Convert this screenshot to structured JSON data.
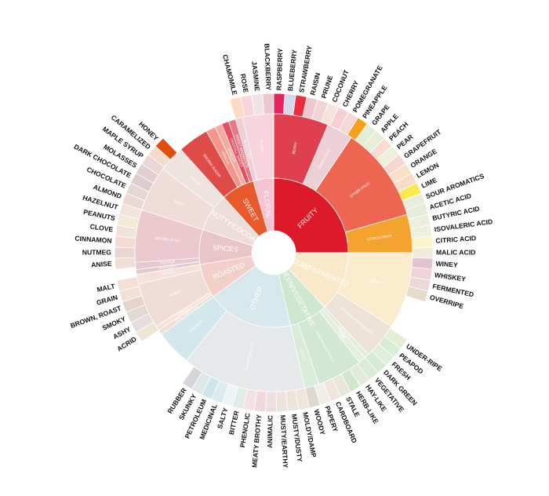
{
  "wheel": {
    "inner": [
      {
        "name": "FRUITY",
        "color": "#dd1a2a",
        "span": [
          0,
          90
        ]
      },
      {
        "name": "SOUR/FERMENTED",
        "color": "#fae9c9",
        "span": [
          90,
          137
        ]
      },
      {
        "name": "GREEN/VEGETATIVE",
        "color": "#cfe6cf",
        "span": [
          137,
          167
        ]
      },
      {
        "name": "OTHER",
        "color": "#d6e8ec",
        "span": [
          167,
          234
        ]
      },
      {
        "name": "ROASTED",
        "color": "#f3cfca",
        "span": [
          234,
          261
        ]
      },
      {
        "name": "SPICES",
        "color": "#e9c4c9",
        "span": [
          261,
          288
        ]
      },
      {
        "name": "NUTTY/COCOA",
        "color": "#eddddb",
        "span": [
          288,
          318
        ]
      },
      {
        "name": "SWEET",
        "color": "#e85a2c",
        "span": [
          318,
          344
        ]
      },
      {
        "name": "FLORAL",
        "color": "#f5c3d3",
        "span": [
          344,
          360
        ]
      }
    ],
    "middle": [
      {
        "name": "BERRY",
        "color": "#df4050",
        "span": [
          0,
          23
        ]
      },
      {
        "name": "DRIED FRUIT",
        "color": "#ecd0d5",
        "span": [
          23,
          34
        ]
      },
      {
        "name": "OTHER FRUIT",
        "color": "#ee6652",
        "span": [
          34,
          74
        ]
      },
      {
        "name": "CITRUS FRUIT",
        "color": "#f4a32f",
        "span": [
          74,
          90
        ]
      },
      {
        "name": "SOUR",
        "color": "#fbecce",
        "span": [
          90,
          122
        ]
      },
      {
        "name": "ALCOHOL/FERMENTED",
        "color": "#ece3d6",
        "span": [
          122,
          137
        ]
      },
      {
        "name": "OLIVE OIL",
        "color": "#e0ecde",
        "span": [
          137,
          139
        ]
      },
      {
        "name": "RAW",
        "color": "#e5efe1",
        "span": [
          139,
          142
        ]
      },
      {
        "name": "GREEN/VEGETATIVE",
        "color": "#d2e8d4",
        "span": [
          142,
          161
        ]
      },
      {
        "name": "BEANY",
        "color": "#d8ecd8",
        "span": [
          161,
          167
        ]
      },
      {
        "name": "PAPERY/MUSTY",
        "color": "#e6e9ea",
        "span": [
          167,
          219
        ]
      },
      {
        "name": "CHEMICAL",
        "color": "#d3e8ec",
        "span": [
          219,
          234
        ]
      },
      {
        "name": "PIPE TOBACCO",
        "color": "#f2ddd3",
        "span": [
          234,
          236
        ]
      },
      {
        "name": "TOBACCO",
        "color": "#f5e2d8",
        "span": [
          236,
          238
        ]
      },
      {
        "name": "BURNT",
        "color": "#f0ddd8",
        "span": [
          238,
          257
        ]
      },
      {
        "name": "CEREAL",
        "color": "#f5e1d9",
        "span": [
          257,
          261
        ]
      },
      {
        "name": "PUNGENT",
        "color": "#e2c9cd",
        "span": [
          261,
          263
        ]
      },
      {
        "name": "PEPPER",
        "color": "#e6cacf",
        "span": [
          263,
          266
        ]
      },
      {
        "name": "BROWN SPICE",
        "color": "#ebc9cf",
        "span": [
          266,
          288
        ]
      },
      {
        "name": "NUTTY",
        "color": "#f0dcd9",
        "span": [
          288,
          307
        ]
      },
      {
        "name": "COCOA",
        "color": "#efe3e0",
        "span": [
          307,
          318
        ]
      },
      {
        "name": "BROWN SUGAR",
        "color": "#df4c48",
        "span": [
          318,
          331
        ]
      },
      {
        "name": "VANILLA",
        "color": "#f5958a",
        "span": [
          331,
          335
        ]
      },
      {
        "name": "VANILLIN",
        "color": "#f7a89b",
        "span": [
          335,
          338
        ]
      },
      {
        "name": "OVERALL SWEET",
        "color": "#e94b61",
        "span": [
          338,
          341
        ]
      },
      {
        "name": "SWEET AROMATICS",
        "color": "#e77a82",
        "span": [
          341,
          344
        ]
      },
      {
        "name": "BLACK TEA",
        "color": "#eccfd7",
        "span": [
          344,
          347
        ]
      },
      {
        "name": "FLORAL",
        "color": "#f7d4de",
        "span": [
          347,
          360
        ]
      }
    ],
    "outer": [
      {
        "name": "CHAMOMILE",
        "color": "#fbdcc3",
        "span": [
          344,
          348
        ]
      },
      {
        "name": "ROSE",
        "color": "#f8d5dd",
        "span": [
          348,
          352
        ]
      },
      {
        "name": "JASMINE",
        "color": "#efe3e6",
        "span": [
          352,
          356
        ]
      },
      {
        "name": "BLACKBERRY",
        "color": "#e9c9cf",
        "span": [
          356,
          360
        ]
      },
      {
        "name": "RASPBERRY",
        "color": "#e3245d",
        "span": [
          0,
          4
        ]
      },
      {
        "name": "BLUEBERRY",
        "color": "#d6d6e9",
        "span": [
          4,
          8
        ]
      },
      {
        "name": "STRAWBERRY",
        "color": "#ee2c3b",
        "span": [
          8,
          12
        ]
      },
      {
        "name": "RAISIN",
        "color": "#edc9cf",
        "span": [
          12,
          16
        ]
      },
      {
        "name": "PRUNE",
        "color": "#f0d4d6",
        "span": [
          16,
          20
        ]
      },
      {
        "name": "COCONUT",
        "color": "#f6e3dc",
        "span": [
          20,
          24
        ]
      },
      {
        "name": "CHERRY",
        "color": "#f5cfd3",
        "span": [
          24,
          28
        ]
      },
      {
        "name": "POMEGRANATE",
        "color": "#f6d9d6",
        "span": [
          28,
          32
        ]
      },
      {
        "name": "PINEAPPLE",
        "color": "#f7a01c",
        "span": [
          32,
          36
        ]
      },
      {
        "name": "GRAPE",
        "color": "#e3efd4",
        "span": [
          36,
          40
        ]
      },
      {
        "name": "APPLE",
        "color": "#e7efd8",
        "span": [
          40,
          44
        ]
      },
      {
        "name": "PEACH",
        "color": "#f7dccf",
        "span": [
          44,
          48
        ]
      },
      {
        "name": "PEAR",
        "color": "#eff0dc",
        "span": [
          48,
          52
        ]
      },
      {
        "name": "GRAPEFRUIT",
        "color": "#f8d6cf",
        "span": [
          52,
          56
        ]
      },
      {
        "name": "ORANGE",
        "color": "#f9e0c8",
        "span": [
          56,
          60
        ]
      },
      {
        "name": "LEMON",
        "color": "#f9dcc7",
        "span": [
          60,
          64
        ]
      },
      {
        "name": "LIME",
        "color": "#fae84c",
        "span": [
          64,
          68
        ]
      },
      {
        "name": "SOUR AROMATICS",
        "color": "#e8eedb",
        "span": [
          68,
          72
        ]
      },
      {
        "name": "ACETIC ACID",
        "color": "#e4ecdc",
        "span": [
          72,
          76
        ]
      },
      {
        "name": "BUTYRIC ACID",
        "color": "#edeede",
        "span": [
          76,
          80
        ]
      },
      {
        "name": "ISOVALERIC ACID",
        "color": "#eef0df",
        "span": [
          80,
          84
        ]
      },
      {
        "name": "CITRIC ACID",
        "color": "#fbf3c9",
        "span": [
          84,
          88
        ]
      },
      {
        "name": "MALIC ACID",
        "color": "#f1ecd9",
        "span": [
          88,
          92
        ]
      },
      {
        "name": "WINEY",
        "color": "#e3c2d1",
        "span": [
          92,
          96
        ]
      },
      {
        "name": "WHISKEY",
        "color": "#f0d2da",
        "span": [
          96,
          100
        ]
      },
      {
        "name": "FERMENTED",
        "color": "#ecd8d7",
        "span": [
          100,
          104
        ]
      },
      {
        "name": "OVERRIPE",
        "color": "#e5dccf",
        "span": [
          104,
          108
        ]
      },
      {
        "name": "UNDER-RIPE",
        "color": "#e3efd2",
        "span": [
          123,
          127
        ]
      },
      {
        "name": "PEAPOD",
        "color": "#d8ecd6",
        "span": [
          127,
          131
        ]
      },
      {
        "name": "FRESH",
        "color": "#e2eedc",
        "span": [
          131,
          135
        ]
      },
      {
        "name": "DARK GREEN",
        "color": "#d6e9d6",
        "span": [
          135,
          139
        ]
      },
      {
        "name": "VEGETATIVE",
        "color": "#dbe8da",
        "span": [
          139,
          143
        ]
      },
      {
        "name": "HAY-LIKE",
        "color": "#e3ead9",
        "span": [
          143,
          147
        ]
      },
      {
        "name": "HERB-LIKE",
        "color": "#cfe8cd",
        "span": [
          147,
          151
        ]
      },
      {
        "name": "STALE",
        "color": "#e9e6da",
        "span": [
          151,
          155
        ]
      },
      {
        "name": "CARDBOARD",
        "color": "#ece6db",
        "span": [
          155,
          159
        ]
      },
      {
        "name": "PAPERY",
        "color": "#f1ede8",
        "span": [
          159,
          163
        ]
      },
      {
        "name": "WOODY",
        "color": "#dfd8d0",
        "span": [
          163,
          167
        ]
      },
      {
        "name": "MOLDY/DAMP",
        "color": "#ece6dc",
        "span": [
          167,
          171
        ]
      },
      {
        "name": "MUSTY/DUSTY",
        "color": "#ebe5da",
        "span": [
          171,
          175
        ]
      },
      {
        "name": "MUSTY/EARTHY",
        "color": "#eee3dc",
        "span": [
          175,
          179
        ]
      },
      {
        "name": "ANIMALIC",
        "color": "#eae0dd",
        "span": [
          179,
          183
        ]
      },
      {
        "name": "MEATY BROTHY",
        "color": "#f1d6db",
        "span": [
          183,
          187
        ]
      },
      {
        "name": "PHENOLIC",
        "color": "#f4e1e2",
        "span": [
          187,
          191
        ]
      },
      {
        "name": "BITTER",
        "color": "#e2ece7",
        "span": [
          191,
          195
        ]
      },
      {
        "name": "SALTY",
        "color": "#eef3f5",
        "span": [
          195,
          199
        ]
      },
      {
        "name": "MEDICINAL",
        "color": "#d9ebee",
        "span": [
          199,
          203
        ]
      },
      {
        "name": "PETROLEUM",
        "color": "#cfe3ea",
        "span": [
          203,
          207
        ]
      },
      {
        "name": "SKUNKY",
        "color": "#dde7e7",
        "span": [
          207,
          211
        ]
      },
      {
        "name": "RUBBER",
        "color": "#d4d6d8",
        "span": [
          211,
          215
        ]
      },
      {
        "name": "ACRID",
        "color": "#ece6d4",
        "span": [
          236,
          240
        ]
      },
      {
        "name": "ASHY",
        "color": "#e4dfdc",
        "span": [
          240,
          244
        ]
      },
      {
        "name": "SMOKY",
        "color": "#e0d9d4",
        "span": [
          244,
          248
        ]
      },
      {
        "name": "BROWN, ROAST",
        "color": "#e5d2c8",
        "span": [
          248,
          252
        ]
      },
      {
        "name": "GRAIN",
        "color": "#f1e0d4",
        "span": [
          252,
          256
        ]
      },
      {
        "name": "MALT",
        "color": "#f5dfd5",
        "span": [
          256,
          260
        ]
      },
      {
        "name": "ANISE",
        "color": "#f1dfd6",
        "span": [
          264,
          268
        ]
      },
      {
        "name": "NUTMEG",
        "color": "#ead5d5",
        "span": [
          268,
          272
        ]
      },
      {
        "name": "CINNAMON",
        "color": "#f6dcd0",
        "span": [
          272,
          276
        ]
      },
      {
        "name": "CLOVE",
        "color": "#f0e2dd",
        "span": [
          276,
          280
        ]
      },
      {
        "name": "PEANUTS",
        "color": "#f3ebd3",
        "span": [
          280,
          284
        ]
      },
      {
        "name": "HAZELNUT",
        "color": "#f2e4dc",
        "span": [
          284,
          288
        ]
      },
      {
        "name": "ALMOND",
        "color": "#ecd9d6",
        "span": [
          288,
          292
        ]
      },
      {
        "name": "CHOCOLATE",
        "color": "#e6d6d1",
        "span": [
          292,
          296
        ]
      },
      {
        "name": "DARK CHOCOLATE",
        "color": "#dccccb",
        "span": [
          296,
          300
        ]
      },
      {
        "name": "MOLASSES",
        "color": "#e2ced1",
        "span": [
          300,
          304
        ]
      },
      {
        "name": "MAPLE SYRUP",
        "color": "#ead6d4",
        "span": [
          304,
          308
        ]
      },
      {
        "name": "CARAMELIZED",
        "color": "#f3dcc8",
        "span": [
          308,
          312
        ]
      },
      {
        "name": "HONEY",
        "color": "#e0500c",
        "span": [
          312,
          316
        ]
      }
    ]
  }
}
